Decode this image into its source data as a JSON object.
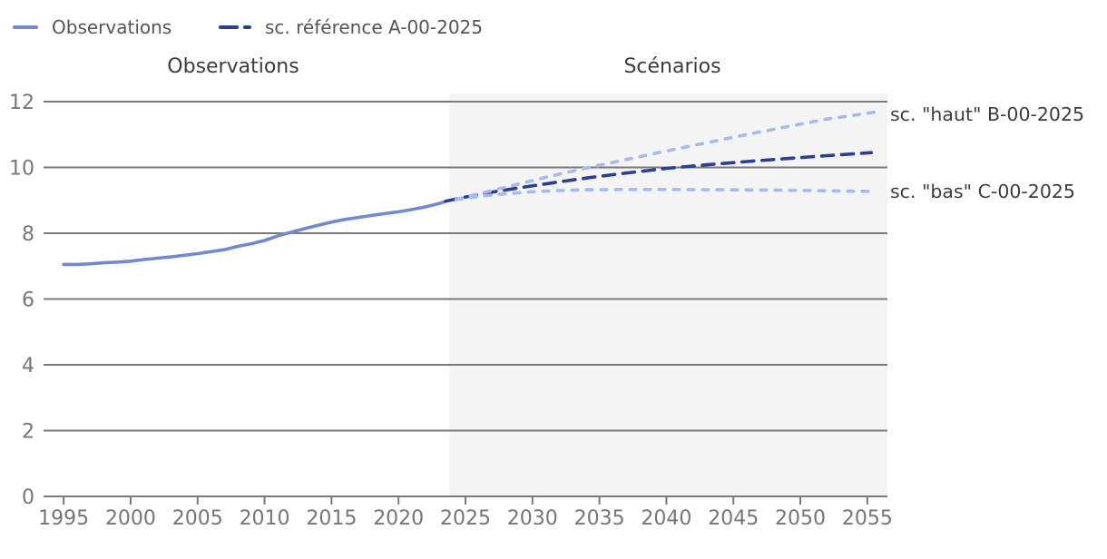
{
  "legend": {
    "items": [
      {
        "key": "observations",
        "label": "Observations",
        "style": "solid",
        "color": "#7289d2"
      },
      {
        "key": "reference",
        "label": "sc. référence A-00-2025",
        "style": "dashed",
        "color": "#2b4090"
      }
    ]
  },
  "sections": {
    "left_title": "Observations",
    "right_title": "Scénarios"
  },
  "annotations": [
    {
      "key": "haut",
      "label": "sc. \"haut\" B-00-2025"
    },
    {
      "key": "bas",
      "label": "sc. \"bas\" C-00-2025"
    }
  ],
  "chart_data": {
    "type": "line",
    "title": "",
    "xlabel": "",
    "ylabel": "",
    "xlim": [
      1993.5,
      2056.5
    ],
    "ylim": [
      0,
      12
    ],
    "x_ticks": [
      1995,
      2000,
      2005,
      2010,
      2015,
      2020,
      2025,
      2030,
      2035,
      2040,
      2045,
      2050,
      2055
    ],
    "y_ticks": [
      0,
      2,
      4,
      6,
      8,
      10,
      12
    ],
    "grid": true,
    "grid_color": "#7a7a7a",
    "tick_label_color": "#767676",
    "legend_position": "top-left",
    "shaded_region": {
      "from": 2023.8,
      "to": 2056.5,
      "color": "#f4f4f4",
      "label": "Scénarios"
    },
    "series": [
      {
        "key": "observations-line",
        "name": "Observations",
        "style": "solid",
        "color": "#7289d2",
        "x": [
          1995,
          1996,
          1997,
          1998,
          1999,
          2000,
          2001,
          2002,
          2003,
          2004,
          2005,
          2006,
          2007,
          2008,
          2009,
          2010,
          2011,
          2012,
          2013,
          2014,
          2015,
          2016,
          2017,
          2018,
          2019,
          2020,
          2021,
          2022,
          2023,
          2023.4
        ],
        "y": [
          7.05,
          7.05,
          7.07,
          7.1,
          7.12,
          7.15,
          7.2,
          7.24,
          7.28,
          7.33,
          7.38,
          7.44,
          7.5,
          7.6,
          7.68,
          7.78,
          7.92,
          8.03,
          8.14,
          8.24,
          8.34,
          8.42,
          8.48,
          8.54,
          8.6,
          8.65,
          8.72,
          8.8,
          8.9,
          8.95
        ]
      },
      {
        "key": "reference-line",
        "name": "sc. référence A-00-2025",
        "style": "dashed-long",
        "color": "#2b4090",
        "x": [
          2023.5,
          2025,
          2027,
          2029,
          2031,
          2033,
          2035,
          2037,
          2040,
          2043,
          2046,
          2049,
          2052,
          2055.3
        ],
        "y": [
          8.97,
          9.1,
          9.25,
          9.38,
          9.5,
          9.62,
          9.73,
          9.83,
          9.97,
          10.08,
          10.18,
          10.27,
          10.36,
          10.45
        ]
      },
      {
        "key": "haut-line",
        "name": "sc. \"haut\" B-00-2025",
        "style": "dashed-short",
        "color": "#a9baea",
        "x": [
          2024.3,
          2026,
          2028,
          2031,
          2034,
          2037,
          2040,
          2043,
          2046,
          2049,
          2052,
          2055.6
        ],
        "y": [
          9.03,
          9.2,
          9.4,
          9.7,
          9.98,
          10.24,
          10.5,
          10.75,
          11.0,
          11.24,
          11.47,
          11.68
        ]
      },
      {
        "key": "bas-line",
        "name": "sc. \"bas\" C-00-2025",
        "style": "dashed-short",
        "color": "#a9baea",
        "x": [
          2024.3,
          2026,
          2028,
          2030,
          2032,
          2034,
          2037,
          2040,
          2044,
          2048,
          2052,
          2055.6
        ],
        "y": [
          9.02,
          9.12,
          9.2,
          9.26,
          9.3,
          9.32,
          9.33,
          9.33,
          9.32,
          9.31,
          9.29,
          9.27
        ]
      }
    ]
  }
}
